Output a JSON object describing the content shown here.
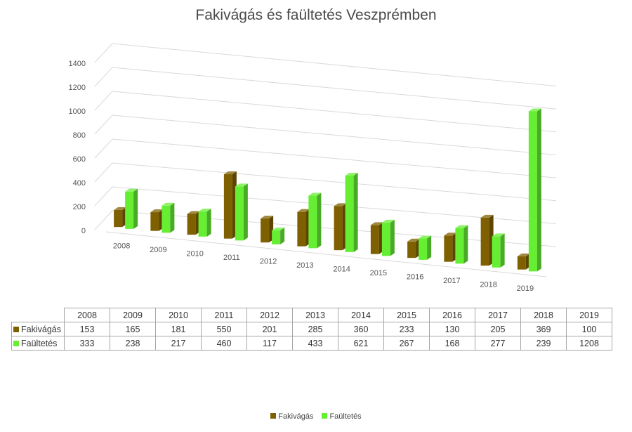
{
  "chart_data": {
    "type": "bar",
    "title": "Fakivágás és faültetés Veszprémben",
    "categories": [
      "2008",
      "2009",
      "2010",
      "2011",
      "2012",
      "2013",
      "2014",
      "2015",
      "2016",
      "2017",
      "2018",
      "2019"
    ],
    "series": [
      {
        "name": "Fakivágás",
        "color": "#7f6000",
        "values": [
          153,
          165,
          181,
          550,
          201,
          285,
          360,
          233,
          130,
          205,
          369,
          100
        ]
      },
      {
        "name": "Faültetés",
        "color": "#66ee33",
        "values": [
          333,
          238,
          217,
          460,
          117,
          433,
          621,
          267,
          168,
          277,
          239,
          1208
        ]
      }
    ],
    "yticks": [
      "0",
      "200",
      "400",
      "600",
      "800",
      "1000",
      "1200",
      "1400"
    ],
    "ylim": [
      0,
      1400
    ],
    "grid": true,
    "legend_position": "bottom",
    "data_table": true
  }
}
